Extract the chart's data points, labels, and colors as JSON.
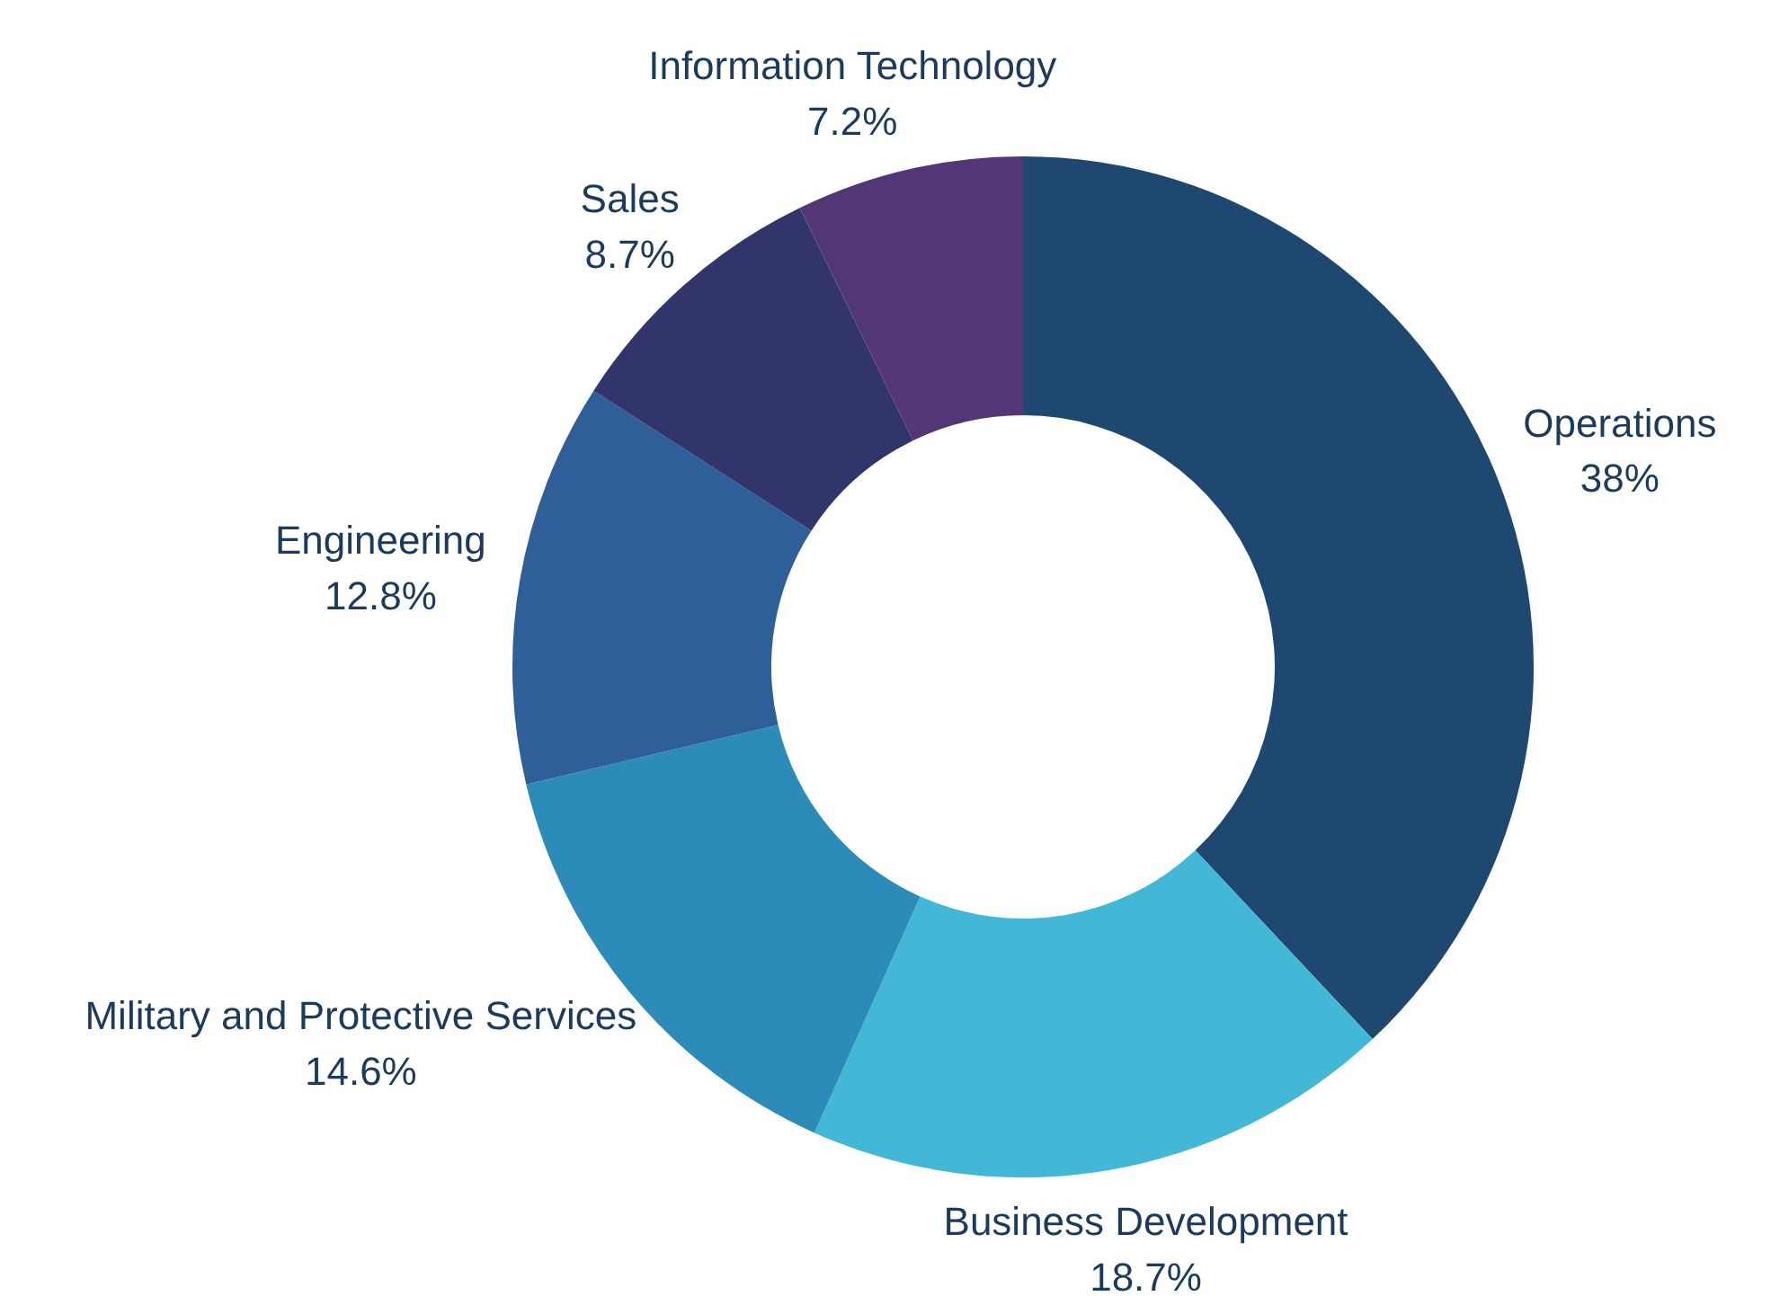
{
  "chart_data": {
    "type": "donut",
    "categories": [
      "Operations",
      "Business Development",
      "Military and Protective Services",
      "Engineering",
      "Sales",
      "Information Technology"
    ],
    "values": [
      38,
      18.7,
      14.6,
      12.8,
      8.7,
      7.2
    ],
    "colors": [
      "#1f4870",
      "#42b7d6",
      "#2d8bba",
      "#2e5f98",
      "#31356b",
      "#523675"
    ],
    "value_labels": [
      "38%",
      "18.7%",
      "14.6%",
      "12.8%",
      "8.7%",
      "7.2%"
    ]
  }
}
